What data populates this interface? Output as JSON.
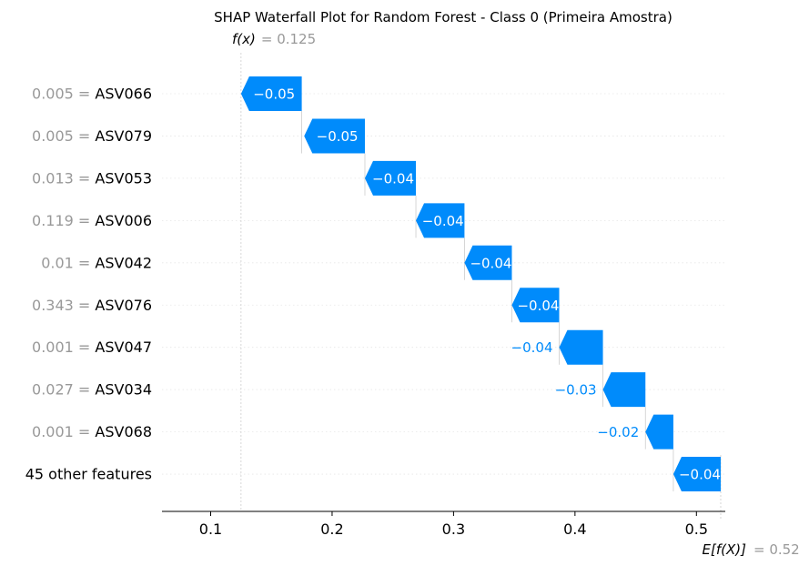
{
  "chart_data": {
    "type": "waterfall",
    "title": "SHAP Waterfall Plot for Random Forest - Class 0 (Primeira Amostra)",
    "fx_label": "f(x)",
    "fx_value": "= 0.125",
    "efx_label": "E[f(X)]",
    "efx_value": "= 0.52",
    "xlim": [
      0.06,
      0.525
    ],
    "xticks": [
      0.1,
      0.2,
      0.3,
      0.4,
      0.5
    ],
    "xtick_labels": [
      "0.1",
      "0.2",
      "0.3",
      "0.4",
      "0.5"
    ],
    "base_value": 0.52,
    "output_value": 0.125,
    "features": [
      {
        "value": "0.005",
        "name": "ASV066",
        "start": 0.175,
        "end": 0.125,
        "label": "−0.05",
        "label_inside": true
      },
      {
        "value": "0.005",
        "name": "ASV079",
        "start": 0.227,
        "end": 0.177,
        "label": "−0.05",
        "label_inside": true
      },
      {
        "value": "0.013",
        "name": "ASV053",
        "start": 0.269,
        "end": 0.227,
        "label": "−0.04",
        "label_inside": true
      },
      {
        "value": "0.119",
        "name": "ASV006",
        "start": 0.309,
        "end": 0.269,
        "label": "−0.04",
        "label_inside": true
      },
      {
        "value": "0.01",
        "name": "ASV042",
        "start": 0.348,
        "end": 0.309,
        "label": "−0.04",
        "label_inside": true
      },
      {
        "value": "0.343",
        "name": "ASV076",
        "start": 0.387,
        "end": 0.348,
        "label": "−0.04",
        "label_inside": true
      },
      {
        "value": "0.001",
        "name": "ASV047",
        "start": 0.423,
        "end": 0.387,
        "label": "−0.04",
        "label_inside": false
      },
      {
        "value": "0.027",
        "name": "ASV034",
        "start": 0.458,
        "end": 0.423,
        "label": "−0.03",
        "label_inside": false
      },
      {
        "value": "0.001",
        "name": "ASV068",
        "start": 0.481,
        "end": 0.458,
        "label": "−0.02",
        "label_inside": false
      },
      {
        "value": "",
        "name": "45 other features",
        "start": 0.52,
        "end": 0.481,
        "label": "−0.04",
        "label_inside": true
      }
    ],
    "colors": {
      "negative": "#008bfb",
      "value_gray": "#999999",
      "text": "#000000",
      "guide": "#cccccc"
    }
  }
}
